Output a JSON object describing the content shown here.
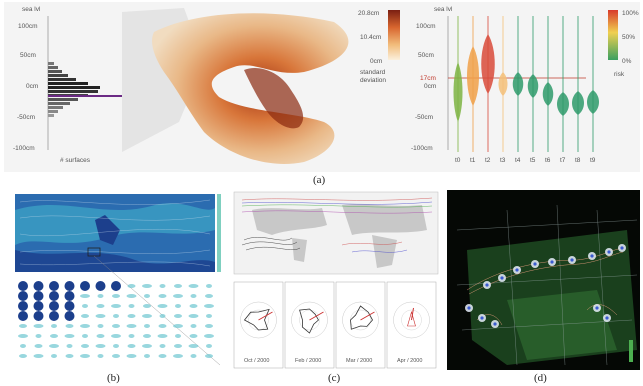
{
  "figure": {
    "captions": [
      "(a)",
      "(b)",
      "(c)",
      "(d)"
    ]
  },
  "panel_a": {
    "left_axis_title": "sea lvl",
    "left_ticks": [
      "100cm",
      "50cm",
      "0cm",
      "-50cm",
      "-100cm"
    ],
    "histogram_label": "# surfaces",
    "colorbar_ticks": [
      "20.8cm",
      "10.4cm",
      "0cm"
    ],
    "colorbar_label_line1": "standard",
    "colorbar_label_line2": "deviation",
    "right_axis_title": "sea lvl",
    "right_ticks": [
      "100cm",
      "50cm",
      "0cm",
      "-50cm",
      "-100cm"
    ],
    "threshold_label": "17cm",
    "risk_ticks": [
      "100%",
      "50%",
      "0%"
    ],
    "risk_label": "risk",
    "time_labels": [
      "t0",
      "t1",
      "t2",
      "t3",
      "t4",
      "t5",
      "t6",
      "t7",
      "t8",
      "t9"
    ],
    "violin_colors": [
      "#7cb342",
      "#f0a048",
      "#d84a3a",
      "#f3c078",
      "#2e9a6a",
      "#2e9a6a",
      "#2e9a6a",
      "#2e9a6a",
      "#2e9a6a",
      "#2e9a6a"
    ]
  },
  "panel_b": {
    "map_colors": [
      "#1c3f8c",
      "#2b6cb0",
      "#3fa6c8",
      "#7fd0c0"
    ]
  },
  "panel_c": {
    "rose_labels": [
      "Oct / 2000",
      "Feb / 2000",
      "Mar / 2000",
      "Apr / 2000"
    ]
  },
  "panel_d": {
    "background": "#000000"
  }
}
